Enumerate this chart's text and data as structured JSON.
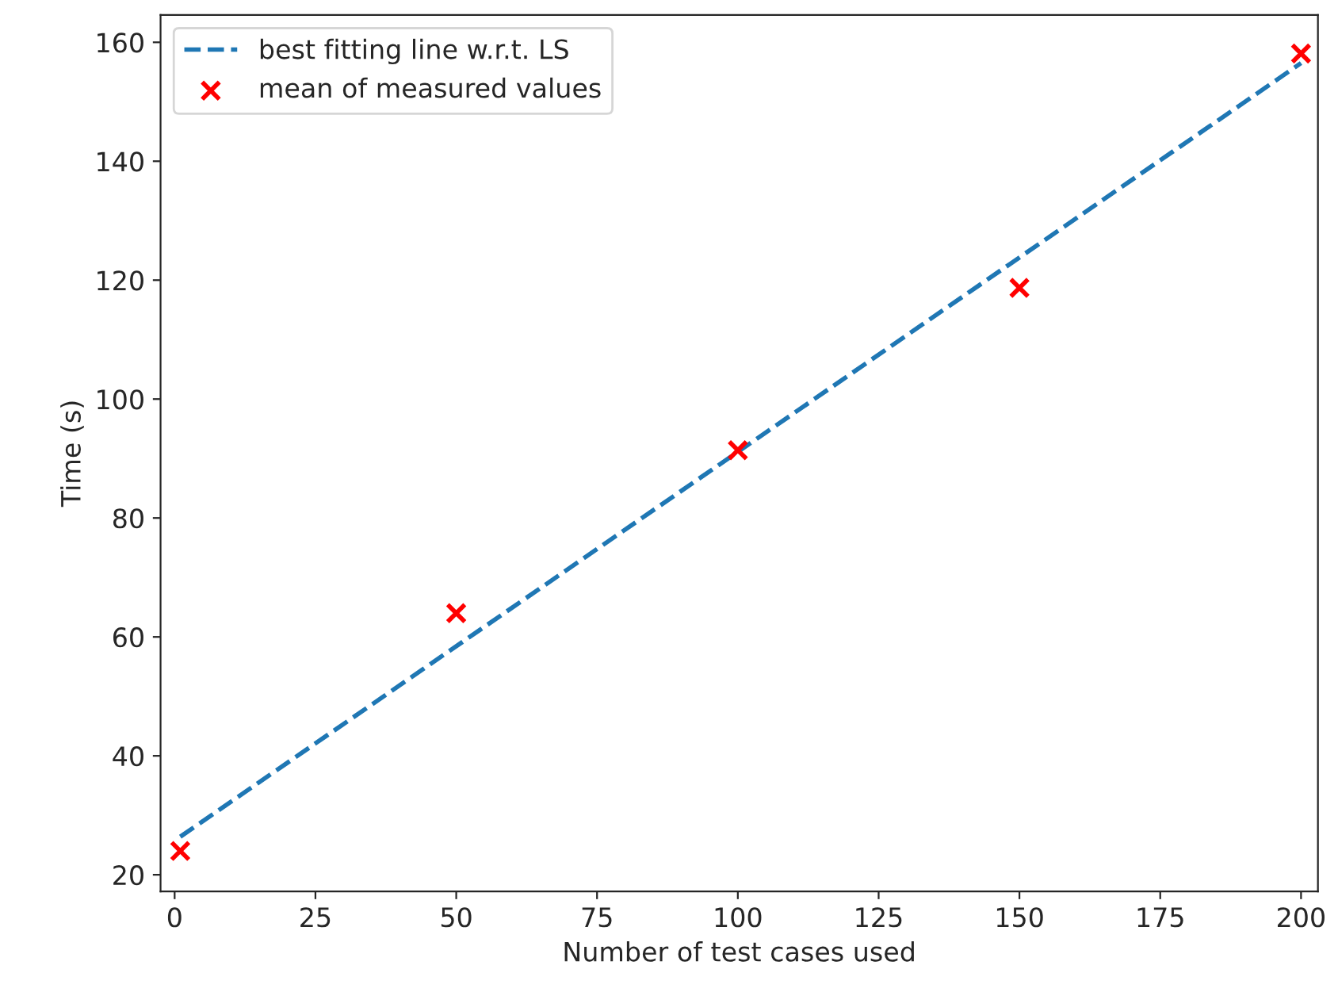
{
  "chart_data": {
    "type": "scatter",
    "xlabel": "Number of test cases used",
    "ylabel": "Time (s)",
    "series": [
      {
        "name": "best fitting line w.r.t. LS",
        "type": "line",
        "color": "#1f77b4",
        "line_style": "dashed",
        "marker": "none",
        "x": [
          1,
          200
        ],
        "values": [
          26.4,
          156.5
        ]
      },
      {
        "name": "mean of measured values",
        "color": "#ff0000",
        "marker": "cross",
        "x": [
          1,
          50,
          100,
          150,
          200
        ],
        "values": [
          24.0,
          64.0,
          91.4,
          118.7,
          158.1
        ]
      }
    ],
    "xlim": [
      -2.5,
      203
    ],
    "ylim": [
      17.2,
      164.6
    ],
    "xticks": [
      0,
      25,
      50,
      75,
      100,
      125,
      150,
      175,
      200
    ],
    "yticks": [
      20,
      40,
      60,
      80,
      100,
      120,
      140,
      160
    ],
    "grid": false,
    "legend": "top left"
  }
}
